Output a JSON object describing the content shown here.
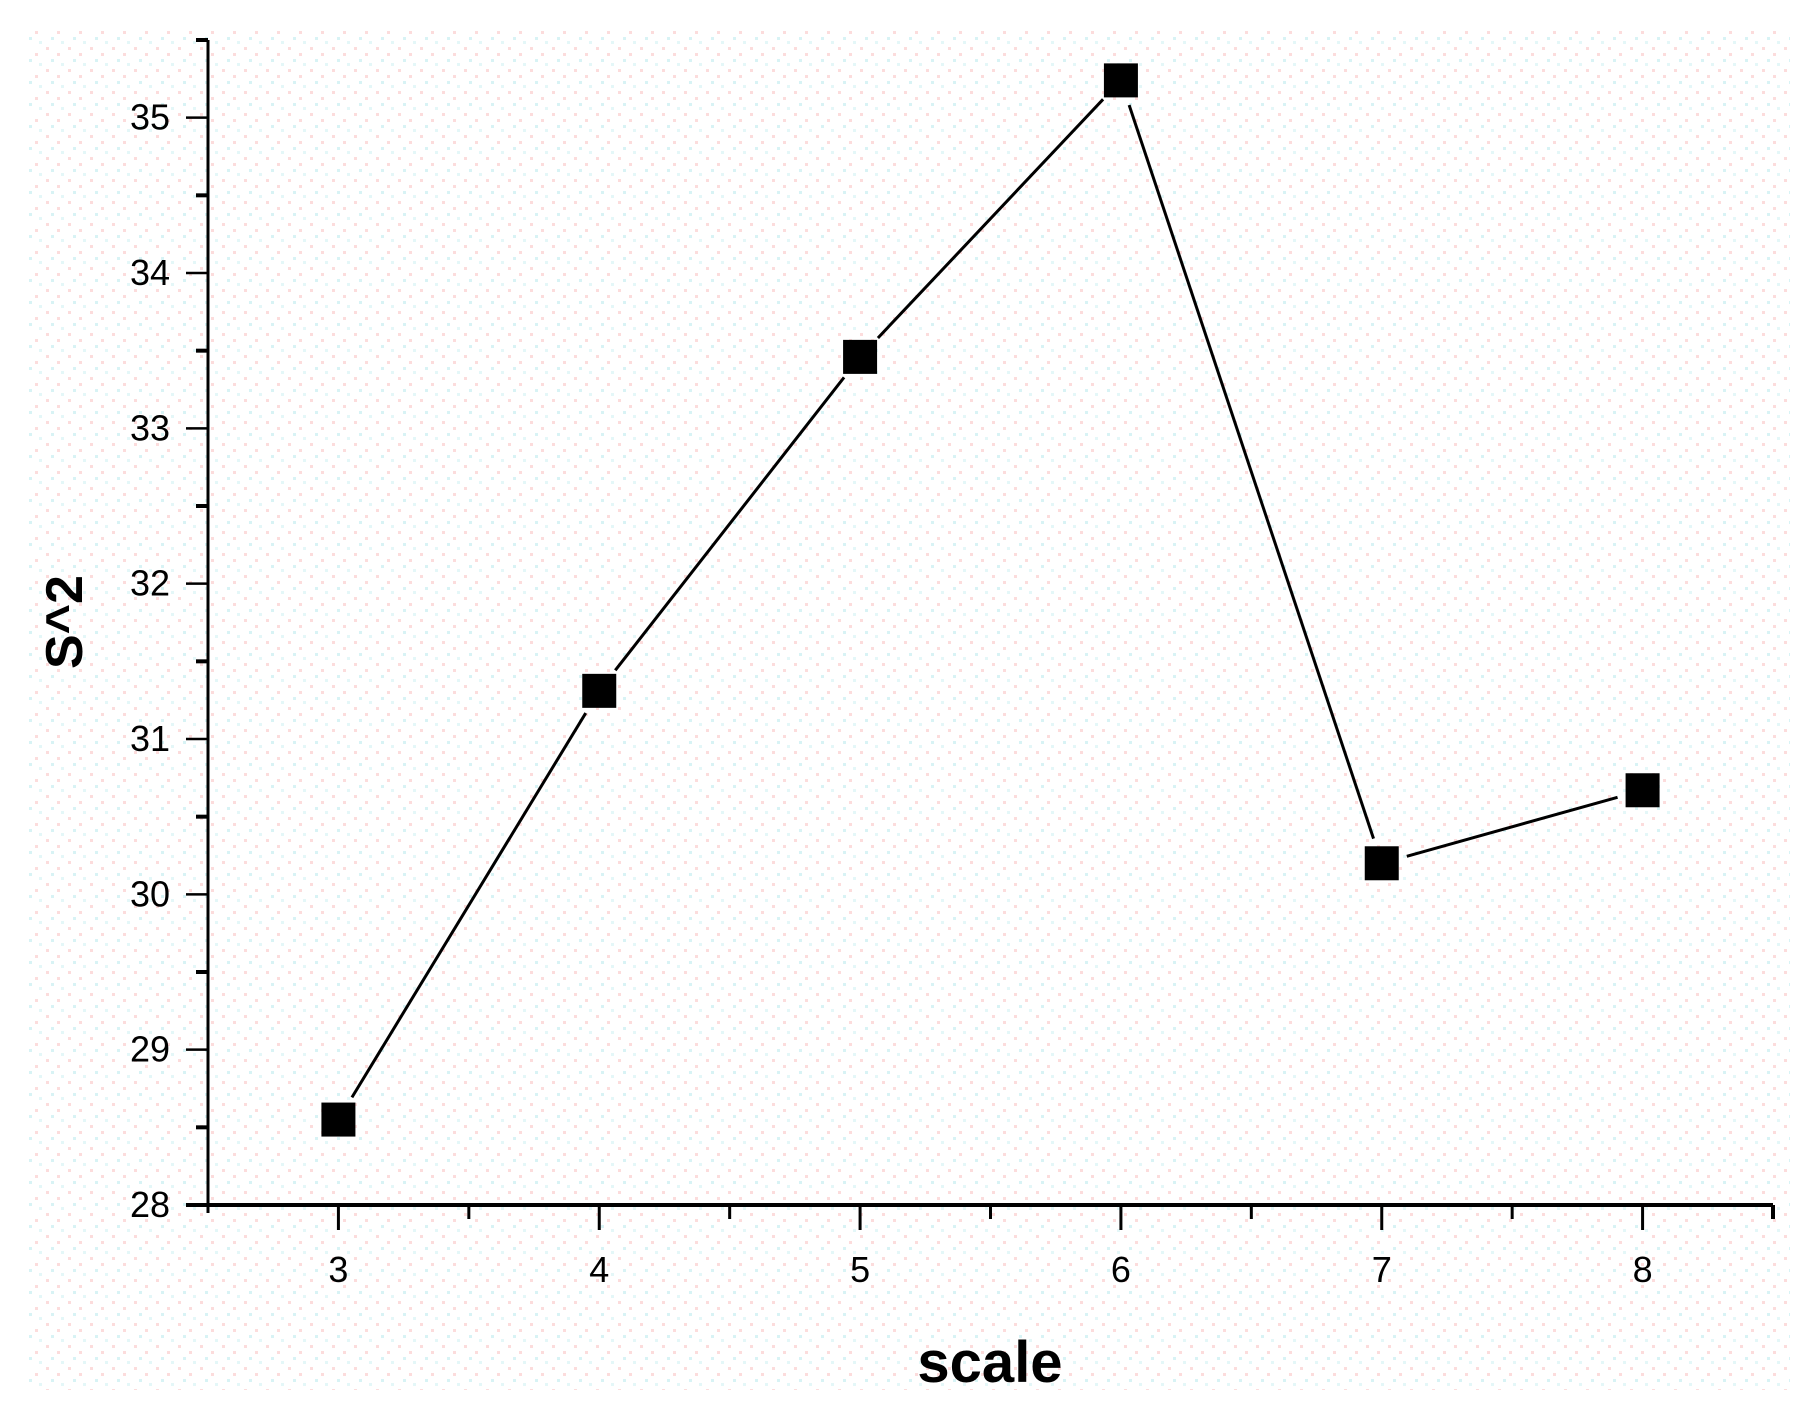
{
  "chart_data": {
    "type": "line",
    "title": "",
    "xlabel": "scale",
    "ylabel": "S^2",
    "x": [
      3,
      4,
      5,
      6,
      7,
      8
    ],
    "series": [
      {
        "name": "S^2",
        "values": [
          28.55,
          31.31,
          33.46,
          35.24,
          30.2,
          30.67
        ],
        "marker": "square",
        "color": "#000000"
      }
    ],
    "xlim": [
      2.5,
      8.5
    ],
    "ylim": [
      28,
      35.5
    ],
    "xticks": [
      "3",
      "4",
      "5",
      "6",
      "7",
      "8"
    ],
    "yticks": [
      "28",
      "29",
      "30",
      "31",
      "32",
      "33",
      "34",
      "35"
    ],
    "grid": false,
    "legend": "none"
  },
  "colors": {
    "background_dots_pink": "#fbd4d4",
    "background_dots_cyan": "#cdeff2",
    "line": "#000000"
  }
}
